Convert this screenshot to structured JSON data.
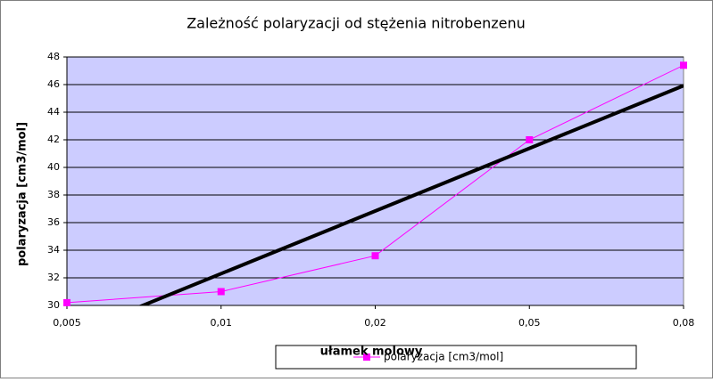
{
  "chart_data": {
    "type": "line",
    "title": "Zależność polaryzacji od stężenia nitrobenzenu",
    "x_label": "ułamek molowy",
    "y_label": "polaryzacja [cm3/mol]",
    "categories": [
      "0,005",
      "0,01",
      "0,02",
      "0,05",
      "0,08"
    ],
    "series": [
      {
        "name": "polaryzacja [cm3/mol]",
        "color": "#ff00ff",
        "values": [
          30.2,
          31.0,
          33.6,
          42.0,
          47.4
        ]
      }
    ],
    "trendline": {
      "type": "linear",
      "color": "#000000"
    },
    "ylim": [
      30,
      48
    ],
    "yticks": [
      30,
      32,
      34,
      36,
      38,
      40,
      42,
      44,
      46,
      48
    ],
    "grid": true,
    "plot_background": "#ccccff",
    "legend": "bottom"
  }
}
